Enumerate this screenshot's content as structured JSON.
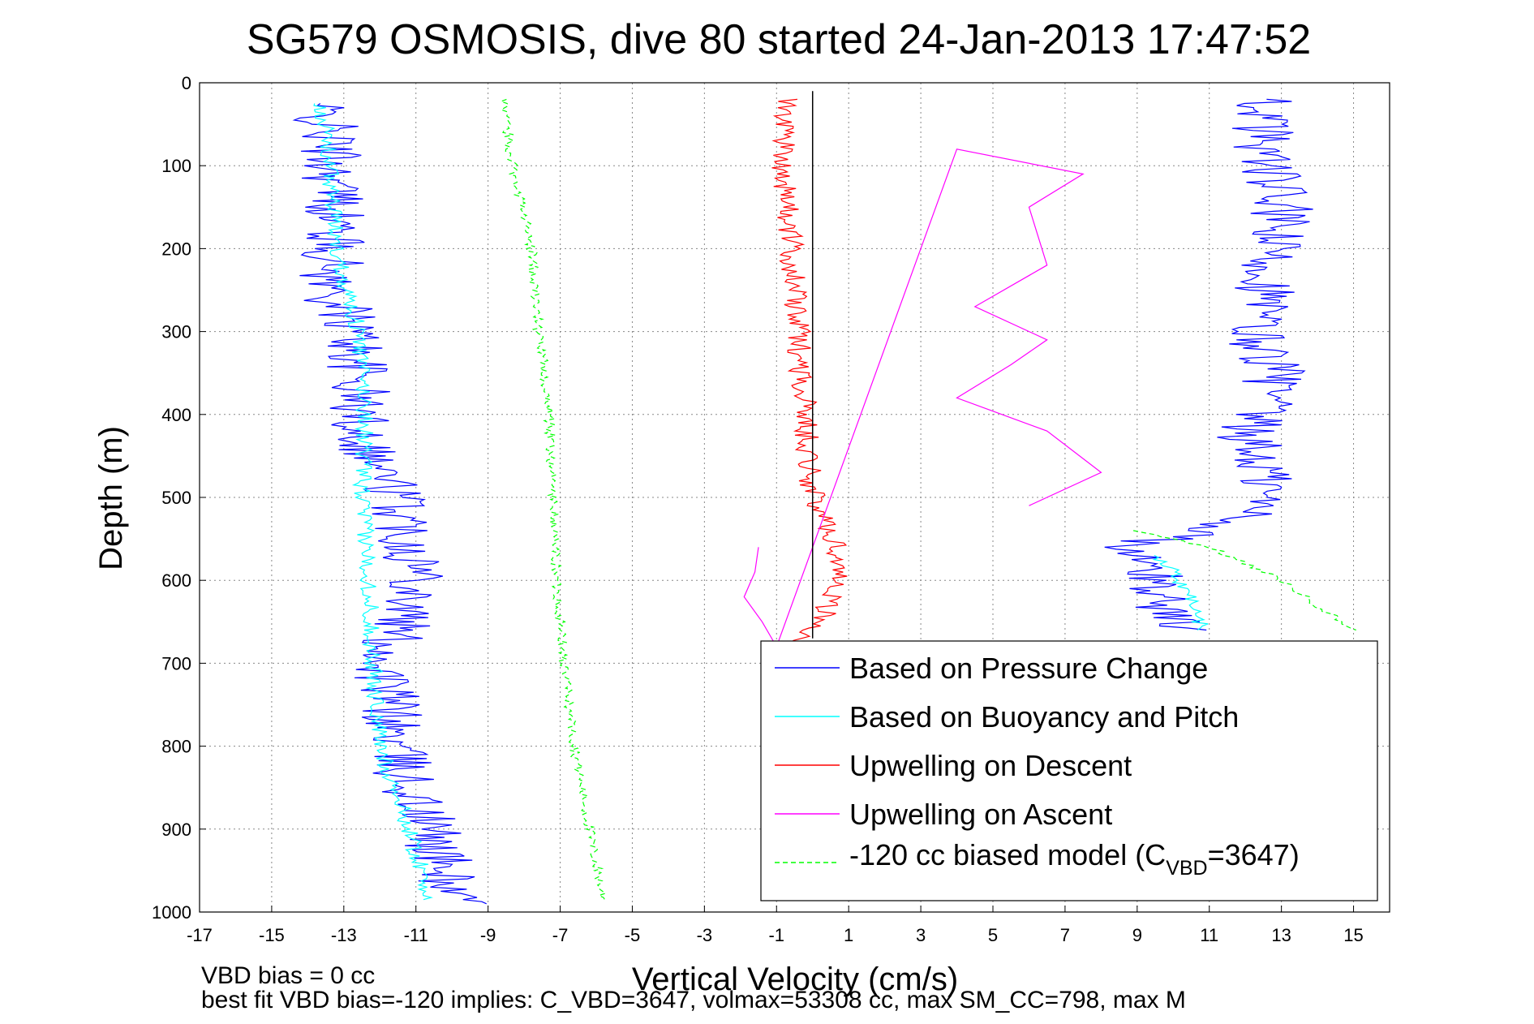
{
  "chart_data": {
    "type": "line",
    "title": "SG579 OSMOSIS, dive 80 started 24-Jan-2013 17:47:52",
    "xlabel": "Vertical Velocity (cm/s)",
    "ylabel": "Depth (m)",
    "xlim": [
      -17,
      16
    ],
    "ylim": [
      0,
      1000
    ],
    "y_reversed": true,
    "grid": true,
    "x_ticks": [
      "-17",
      "-15",
      "-13",
      "-11",
      "-9",
      "-7",
      "-5",
      "-3",
      "-1",
      "1",
      "3",
      "5",
      "7",
      "9",
      "11",
      "13",
      "15"
    ],
    "y_ticks": [
      "0",
      "100",
      "200",
      "300",
      "400",
      "500",
      "600",
      "700",
      "800",
      "900",
      "1000"
    ],
    "legend_position": "bottom-right",
    "notes": {
      "line1": "VBD bias = 0 cc",
      "line2": "best fit VBD bias=-120 implies: C_VBD=3647, volmax=53308 cc, max SM_CC=798, max M"
    },
    "legend": {
      "item1": "Based on Pressure Change",
      "item2": "Based on Buoyancy and Pitch",
      "item3": "Upwelling on Descent",
      "item4": "Upwelling on Ascent",
      "item5_prefix": "-120 cc biased model (C",
      "item5_sub": "VBD",
      "item5_suffix": "=3647)"
    },
    "series": [
      {
        "name": "Based on Pressure Change",
        "color": "#0000ff",
        "descent": [
          [
            -13.8,
            25
          ],
          [
            -13.5,
            50
          ],
          [
            -13.3,
            100
          ],
          [
            -13.2,
            150
          ],
          [
            -13.3,
            200
          ],
          [
            -13.4,
            250
          ],
          [
            -12.7,
            300
          ],
          [
            -12.6,
            350
          ],
          [
            -12.6,
            400
          ],
          [
            -12.2,
            450
          ],
          [
            -11.5,
            500
          ],
          [
            -11.2,
            550
          ],
          [
            -10.8,
            600
          ],
          [
            -11.4,
            650
          ],
          [
            -12.0,
            700
          ],
          [
            -11.7,
            750
          ],
          [
            -11.6,
            800
          ],
          [
            -11.2,
            850
          ],
          [
            -10.6,
            900
          ],
          [
            -10.2,
            950
          ],
          [
            -9.9,
            990
          ]
        ],
        "ascent": [
          [
            8.5,
            560
          ],
          [
            9.2,
            580
          ],
          [
            9.7,
            620
          ],
          [
            10.1,
            660
          ],
          [
            11.0,
            540
          ],
          [
            12.3,
            520
          ],
          [
            12.6,
            480
          ],
          [
            12.3,
            450
          ],
          [
            12.0,
            420
          ],
          [
            12.6,
            380
          ],
          [
            12.9,
            350
          ],
          [
            12.2,
            300
          ],
          [
            12.6,
            250
          ],
          [
            12.7,
            200
          ],
          [
            13.0,
            150
          ],
          [
            12.6,
            100
          ],
          [
            12.5,
            50
          ],
          [
            12.6,
            20
          ]
        ]
      },
      {
        "name": "Based on Buoyancy and Pitch",
        "color": "#00ffff",
        "descent": [
          [
            -13.6,
            25
          ],
          [
            -13.4,
            100
          ],
          [
            -13.2,
            200
          ],
          [
            -12.6,
            300
          ],
          [
            -12.4,
            400
          ],
          [
            -12.5,
            500
          ],
          [
            -12.3,
            600
          ],
          [
            -12.2,
            700
          ],
          [
            -12.0,
            800
          ],
          [
            -11.2,
            900
          ],
          [
            -10.6,
            985
          ]
        ],
        "ascent": [
          [
            9.3,
            570
          ],
          [
            10.0,
            590
          ],
          [
            10.5,
            620
          ],
          [
            10.8,
            660
          ]
        ]
      },
      {
        "name": "Upwelling on Descent",
        "color": "#ff0000",
        "points": [
          [
            -0.7,
            20
          ],
          [
            -0.8,
            100
          ],
          [
            -0.6,
            200
          ],
          [
            -0.4,
            300
          ],
          [
            -0.2,
            400
          ],
          [
            0.0,
            500
          ],
          [
            0.6,
            550
          ],
          [
            0.8,
            600
          ],
          [
            0.2,
            650
          ],
          [
            -0.5,
            680
          ]
        ]
      },
      {
        "name": "Upwelling on Ascent",
        "color": "#ff00ff",
        "points": [
          [
            -1.5,
            560
          ],
          [
            -1.6,
            590
          ],
          [
            -1.9,
            620
          ],
          [
            -1.4,
            650
          ],
          [
            -1.0,
            680
          ],
          [
            4.0,
            80
          ],
          [
            7.5,
            110
          ],
          [
            6.0,
            150
          ],
          [
            6.5,
            220
          ],
          [
            4.5,
            270
          ],
          [
            6.5,
            310
          ],
          [
            5.5,
            340
          ],
          [
            4.0,
            380
          ],
          [
            6.5,
            420
          ],
          [
            8.0,
            470
          ],
          [
            6.0,
            510
          ]
        ]
      },
      {
        "name": "-120 cc biased model (CVBD=3647)",
        "color": "#00ff00",
        "dashed": true,
        "descent": [
          [
            -8.6,
            20
          ],
          [
            -8.3,
            100
          ],
          [
            -7.8,
            200
          ],
          [
            -7.6,
            300
          ],
          [
            -7.3,
            400
          ],
          [
            -7.2,
            500
          ],
          [
            -7.1,
            600
          ],
          [
            -6.9,
            700
          ],
          [
            -6.6,
            800
          ],
          [
            -6.2,
            900
          ],
          [
            -5.8,
            985
          ]
        ],
        "ascent": [
          [
            9.0,
            540
          ],
          [
            11.0,
            560
          ],
          [
            12.0,
            580
          ],
          [
            13.0,
            600
          ],
          [
            14.0,
            630
          ],
          [
            15.0,
            660
          ]
        ]
      }
    ]
  }
}
